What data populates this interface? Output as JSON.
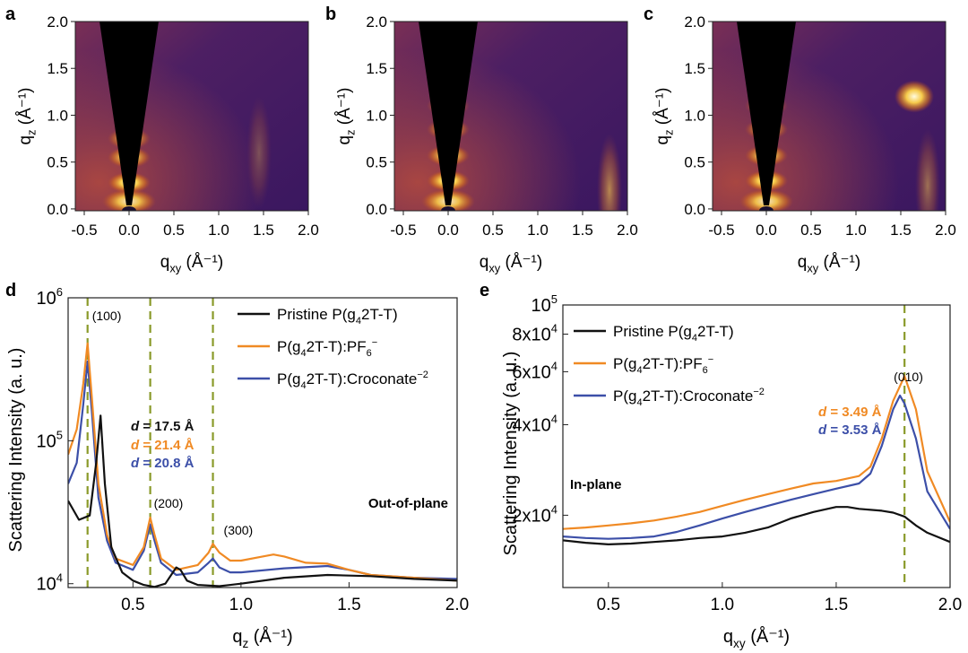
{
  "colors": {
    "pristine": "#111111",
    "pf6": "#f08a24",
    "croconate": "#3c4fa8",
    "dashed_line": "#8a9a2a",
    "map_background": "#4a1d5e",
    "map_hot": "#ffe07a"
  },
  "chart_data": [
    {
      "panel": "a",
      "type": "heatmap",
      "xlabel": "q",
      "xlabel_sub": "xy",
      "xlabel_unit": "(Å⁻¹)",
      "ylabel": "q",
      "ylabel_sub": "z",
      "ylabel_unit": "(Å⁻¹)",
      "xlim": [
        -0.6,
        2.0
      ],
      "ylim": [
        -0.02,
        2.0
      ],
      "xticks": [
        "-0.5",
        "0.0",
        "0.5",
        "1.0",
        "1.5",
        "2.0"
      ],
      "yticks": [
        "0.0",
        "0.5",
        "1.0",
        "1.5",
        "2.0"
      ],
      "features": [
        {
          "kind": "lobe",
          "qxy": 0.0,
          "qz": 0.28,
          "intensity": 1.0
        },
        {
          "kind": "lobe",
          "qxy": 0.0,
          "qz": 0.55,
          "intensity": 0.85
        },
        {
          "kind": "lobe",
          "qxy": 0.0,
          "qz": 0.75,
          "intensity": 0.7
        },
        {
          "kind": "arc",
          "qxy": 1.45,
          "qz": 0.6,
          "intensity": 0.35
        }
      ]
    },
    {
      "panel": "b",
      "type": "heatmap",
      "xlabel": "q",
      "xlabel_sub": "xy",
      "xlabel_unit": "(Å⁻¹)",
      "ylabel": "q",
      "ylabel_sub": "z",
      "ylabel_unit": "(Å⁻¹)",
      "xlim": [
        -0.6,
        2.0
      ],
      "ylim": [
        -0.02,
        2.0
      ],
      "xticks": [
        "-0.5",
        "0.0",
        "0.5",
        "1.0",
        "1.5",
        "2.0"
      ],
      "yticks": [
        "0.0",
        "0.5",
        "1.0",
        "1.5",
        "2.0"
      ],
      "features": [
        {
          "kind": "lobe",
          "qxy": 0.0,
          "qz": 0.3,
          "intensity": 1.0
        },
        {
          "kind": "lobe",
          "qxy": 0.0,
          "qz": 0.57,
          "intensity": 0.85
        },
        {
          "kind": "lobe",
          "qxy": 0.0,
          "qz": 0.85,
          "intensity": 0.7
        },
        {
          "kind": "lobe",
          "qxy": 0.0,
          "qz": 1.1,
          "intensity": 0.55
        },
        {
          "kind": "arc",
          "qxy": 1.8,
          "qz": 0.2,
          "intensity": 0.7
        }
      ]
    },
    {
      "panel": "c",
      "type": "heatmap",
      "xlabel": "q",
      "xlabel_sub": "xy",
      "xlabel_unit": "(Å⁻¹)",
      "ylabel": "q",
      "ylabel_sub": "z",
      "ylabel_unit": "(Å⁻¹)",
      "xlim": [
        -0.6,
        2.0
      ],
      "ylim": [
        -0.02,
        2.0
      ],
      "xticks": [
        "-0.5",
        "0.0",
        "0.5",
        "1.0",
        "1.5",
        "2.0"
      ],
      "yticks": [
        "0.0",
        "0.5",
        "1.0",
        "1.5",
        "2.0"
      ],
      "features": [
        {
          "kind": "lobe",
          "qxy": 0.0,
          "qz": 0.3,
          "intensity": 1.0
        },
        {
          "kind": "lobe",
          "qxy": 0.0,
          "qz": 0.57,
          "intensity": 0.85
        },
        {
          "kind": "lobe",
          "qxy": 0.0,
          "qz": 0.85,
          "intensity": 0.7
        },
        {
          "kind": "lobe",
          "qxy": 0.0,
          "qz": 1.1,
          "intensity": 0.5
        },
        {
          "kind": "spot",
          "qxy": 1.65,
          "qz": 1.2,
          "intensity": 1.0
        },
        {
          "kind": "arc",
          "qxy": 1.8,
          "qz": 0.25,
          "intensity": 0.55
        }
      ]
    },
    {
      "panel": "d",
      "type": "line",
      "xlabel": "q",
      "xlabel_sub": "z",
      "xlabel_unit": "(Å⁻¹)",
      "ylabel": "Scattering Intensity (a. u.)",
      "yscale": "log",
      "xlim": [
        0.2,
        2.0
      ],
      "ylim": [
        9400,
        1000000
      ],
      "xticks": [
        "0.5",
        "1.0",
        "1.5",
        "2.0"
      ],
      "yticks": [
        {
          "value": 10000,
          "base": "10",
          "exp": "4"
        },
        {
          "value": 100000,
          "base": "10",
          "exp": "5"
        },
        {
          "value": 1000000,
          "base": "10",
          "exp": "6"
        }
      ],
      "vlines": [
        0.29,
        0.58,
        0.87
      ],
      "peak_labels": [
        "(100)",
        "(200)",
        "(300)"
      ],
      "annotations": [
        {
          "italic": "d",
          "rest": " = 17.5 Å",
          "series": 0
        },
        {
          "italic": "d",
          "rest": " = 21.4 Å",
          "series": 1
        },
        {
          "italic": "d",
          "rest": " = 20.8 Å",
          "series": 2
        }
      ],
      "corner_label": "Out-of-plane",
      "legend_position": "top-right",
      "series": [
        {
          "name": "Pristine P(g4 2T-T)",
          "legend": {
            "a": "Pristine P(g",
            "sub": "4",
            "b": "2T-T)",
            "sup": ""
          },
          "x": [
            0.2,
            0.25,
            0.3,
            0.33,
            0.35,
            0.37,
            0.4,
            0.45,
            0.5,
            0.55,
            0.6,
            0.65,
            0.7,
            0.72,
            0.75,
            0.8,
            0.9,
            1.0,
            1.2,
            1.4,
            1.6,
            1.8,
            2.0
          ],
          "y": [
            38000,
            28000,
            30000,
            70000,
            150000,
            50000,
            18000,
            12000,
            10500,
            9800,
            9500,
            10000,
            13000,
            12500,
            10500,
            9800,
            9600,
            10000,
            11000,
            11500,
            11300,
            10800,
            10500
          ]
        },
        {
          "name": "P(g4 2T-T):PF6−",
          "legend": {
            "a": "P(g",
            "sub": "4",
            "b": "2T-T):PF",
            "sub2": "6",
            "sup": "−"
          },
          "x": [
            0.2,
            0.24,
            0.27,
            0.29,
            0.31,
            0.34,
            0.38,
            0.42,
            0.5,
            0.55,
            0.58,
            0.6,
            0.63,
            0.7,
            0.8,
            0.85,
            0.87,
            0.9,
            0.95,
            1.0,
            1.1,
            1.15,
            1.2,
            1.3,
            1.4,
            1.5,
            1.6,
            1.8,
            2.0
          ],
          "y": [
            80000,
            120000,
            250000,
            480000,
            200000,
            50000,
            22000,
            15000,
            13500,
            18000,
            29000,
            22000,
            15000,
            12500,
            13500,
            16500,
            19000,
            16500,
            14500,
            14500,
            15500,
            16000,
            15500,
            14000,
            13800,
            12500,
            11500,
            11000,
            10500
          ]
        },
        {
          "name": "P(g4 2T-T):Croconate−2",
          "legend": {
            "a": "P(g",
            "sub": "4",
            "b": "2T-T):Croconate",
            "sup": "−2"
          },
          "x": [
            0.2,
            0.24,
            0.27,
            0.29,
            0.31,
            0.34,
            0.38,
            0.42,
            0.5,
            0.55,
            0.58,
            0.6,
            0.63,
            0.7,
            0.8,
            0.85,
            0.87,
            0.9,
            0.95,
            1.0,
            1.2,
            1.4,
            1.5,
            1.6,
            1.8,
            2.0
          ],
          "y": [
            50000,
            70000,
            180000,
            360000,
            160000,
            40000,
            20000,
            14000,
            12500,
            17000,
            26000,
            20000,
            14000,
            11500,
            12000,
            14000,
            15000,
            13000,
            12000,
            12000,
            12800,
            13300,
            12500,
            11500,
            11000,
            10800
          ]
        }
      ]
    },
    {
      "panel": "e",
      "type": "line",
      "xlabel": "q",
      "xlabel_sub": "xy",
      "xlabel_unit": "(Å⁻¹)",
      "ylabel": "Scattering Intensity (a. u.)",
      "yscale": "log",
      "xlim": [
        0.3,
        2.0
      ],
      "ylim": [
        11500,
        100000
      ],
      "xticks": [
        "0.5",
        "1.0",
        "1.5",
        "2.0"
      ],
      "yticks": [
        {
          "value": 20000,
          "base": "2x10",
          "exp": "4"
        },
        {
          "value": 40000,
          "base": "4x10",
          "exp": "4"
        },
        {
          "value": 60000,
          "base": "6x10",
          "exp": "4"
        },
        {
          "value": 80000,
          "base": "8x10",
          "exp": "4"
        },
        {
          "value": 100000,
          "base": "10",
          "exp": "5"
        }
      ],
      "vlines": [
        1.8
      ],
      "peak_labels": [
        "(010)"
      ],
      "annotations": [
        {
          "italic": "d",
          "rest": " = 3.49 Å",
          "series": 1
        },
        {
          "italic": "d",
          "rest": " = 3.53 Å",
          "series": 2
        }
      ],
      "corner_label": "In-plane",
      "legend_position": "top-left",
      "series": [
        {
          "name": "Pristine P(g4 2T-T)",
          "legend": {
            "a": "Pristine P(g",
            "sub": "4",
            "b": "2T-T)",
            "sup": ""
          },
          "x": [
            0.3,
            0.4,
            0.5,
            0.6,
            0.7,
            0.8,
            0.9,
            1.0,
            1.1,
            1.2,
            1.3,
            1.4,
            1.5,
            1.55,
            1.6,
            1.7,
            1.75,
            1.8,
            1.85,
            1.9,
            2.0
          ],
          "y": [
            16500,
            16200,
            16000,
            16100,
            16300,
            16500,
            16800,
            17000,
            17500,
            18200,
            19500,
            20500,
            21300,
            21300,
            21000,
            20700,
            20400,
            19800,
            18500,
            17500,
            16300
          ]
        },
        {
          "name": "P(g4 2T-T):PF6−",
          "legend": {
            "a": "P(g",
            "sub": "4",
            "b": "2T-T):PF",
            "sub2": "6",
            "sup": "−"
          },
          "x": [
            0.3,
            0.4,
            0.5,
            0.6,
            0.7,
            0.8,
            0.9,
            1.0,
            1.1,
            1.2,
            1.3,
            1.4,
            1.5,
            1.6,
            1.65,
            1.7,
            1.75,
            1.8,
            1.85,
            1.9,
            2.0
          ],
          "y": [
            18000,
            18200,
            18500,
            18800,
            19200,
            19800,
            20500,
            21500,
            22500,
            23500,
            24500,
            25500,
            26000,
            27000,
            29000,
            36000,
            48000,
            58000,
            45000,
            28000,
            19000
          ]
        },
        {
          "name": "P(g4 2T-T):Croconate−2",
          "legend": {
            "a": "P(g",
            "sub": "4",
            "b": "2T-T):Croconate",
            "sup": "−2"
          },
          "x": [
            0.3,
            0.4,
            0.5,
            0.6,
            0.7,
            0.8,
            0.9,
            1.0,
            1.1,
            1.2,
            1.3,
            1.4,
            1.5,
            1.6,
            1.65,
            1.7,
            1.75,
            1.78,
            1.8,
            1.85,
            1.9,
            2.0
          ],
          "y": [
            17000,
            16800,
            16700,
            16800,
            17000,
            17600,
            18500,
            19500,
            20500,
            21500,
            22500,
            23500,
            24500,
            25500,
            27500,
            34000,
            45000,
            50000,
            47000,
            36000,
            24000,
            18000
          ]
        }
      ]
    }
  ]
}
